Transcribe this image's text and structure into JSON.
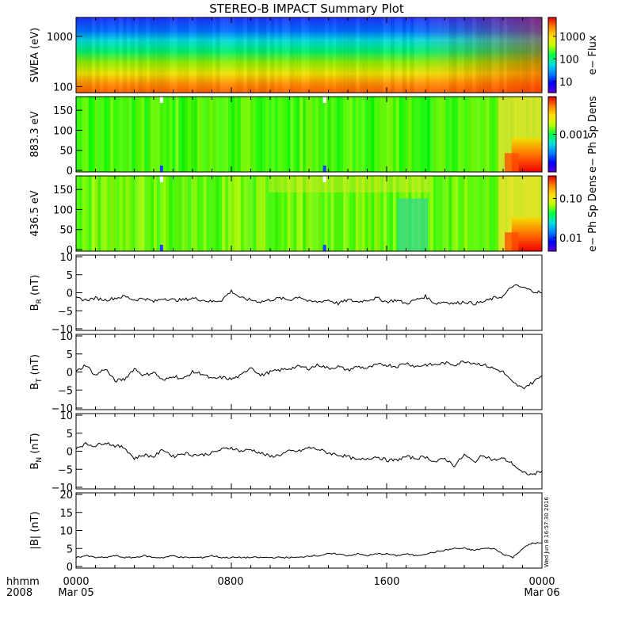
{
  "title": "STEREO-B IMPACT Summary Plot",
  "x_axis": {
    "label_line1": "hhmm",
    "label_line2": "2008",
    "ticks": [
      {
        "hhmm": "0000",
        "date": "Mar 05"
      },
      {
        "hhmm": "0800",
        "date": ""
      },
      {
        "hhmm": "1600",
        "date": ""
      },
      {
        "hhmm": "0000",
        "date": "Mar 06"
      }
    ]
  },
  "timestamp": "Wed Jun 8 16:57:30 2016",
  "colors": {
    "spectrogram_scale": [
      "#5a00d8",
      "#0000ff",
      "#0080ff",
      "#00e0e0",
      "#00ff40",
      "#c0ff00",
      "#ffe000",
      "#ff8000",
      "#e00000"
    ],
    "trace": "#000000"
  },
  "chart_data": [
    {
      "type": "heatmap",
      "ylabel": "SWEA (eV)",
      "yscale": "log",
      "y_ticks": [
        "1000",
        "100"
      ],
      "colorbar_label": "e− Flux",
      "colorbar_ticks": [
        "1000",
        "100",
        "10"
      ]
    },
    {
      "type": "heatmap",
      "ylabel": "883.3 eV",
      "y_ticks": [
        "150",
        "100",
        "50",
        "0"
      ],
      "ylim": [
        0,
        180
      ],
      "colorbar_label": "e− Ph Sp Dens",
      "colorbar_ticks": [
        "0.001"
      ]
    },
    {
      "type": "heatmap",
      "ylabel": "436.5 eV",
      "y_ticks": [
        "150",
        "100",
        "50",
        "0"
      ],
      "ylim": [
        0,
        180
      ],
      "colorbar_label": "e− Ph Sp Dens",
      "colorbar_ticks": [
        "0.10",
        "0.01"
      ]
    },
    {
      "type": "line",
      "ylabel_main": "B",
      "ylabel_sub": "R",
      "ylabel_unit": " (nT)",
      "xlim": [
        0,
        24
      ],
      "ylim": [
        -10,
        10
      ],
      "y_ticks": [
        "10",
        "5",
        "0",
        "−5",
        "−10"
      ],
      "x": [
        0,
        0.5,
        1,
        1.5,
        2,
        2.5,
        3,
        3.5,
        4,
        4.5,
        5,
        5.5,
        6,
        6.5,
        7,
        7.5,
        8,
        8.5,
        9,
        9.5,
        10,
        10.5,
        11,
        11.5,
        12,
        12.5,
        13,
        13.5,
        14,
        14.5,
        15,
        15.5,
        16,
        16.5,
        17,
        17.5,
        18,
        18.5,
        19,
        19.5,
        20,
        20.5,
        21,
        21.5,
        22,
        22.5,
        23,
        23.5,
        24
      ],
      "values": [
        -1.5,
        -2,
        -1.5,
        -2,
        -1.5,
        -1,
        -2,
        -1.5,
        -2.5,
        -1.5,
        -2,
        -2,
        -1.5,
        -2,
        -2.5,
        -2,
        0.5,
        -1.5,
        -2,
        -2.5,
        -2,
        -1.5,
        -2,
        -1,
        -2.5,
        -2.5,
        -2,
        -3,
        -2,
        -2.5,
        -2,
        -1.5,
        -2.5,
        -2,
        -3,
        -2,
        -1,
        -3,
        -2.5,
        -3,
        -2.5,
        -3,
        -2.5,
        -1.5,
        -1,
        2,
        1.5,
        0.5,
        0
      ]
    },
    {
      "type": "line",
      "ylabel_main": "B",
      "ylabel_sub": "T",
      "ylabel_unit": " (nT)",
      "xlim": [
        0,
        24
      ],
      "ylim": [
        -10,
        10
      ],
      "y_ticks": [
        "10",
        "5",
        "0",
        "−5",
        "−10"
      ],
      "x": [
        0,
        0.5,
        1,
        1.5,
        2,
        2.5,
        3,
        3.5,
        4,
        4.5,
        5,
        5.5,
        6,
        6.5,
        7,
        7.5,
        8,
        8.5,
        9,
        9.5,
        10,
        10.5,
        11,
        11.5,
        12,
        12.5,
        13,
        13.5,
        14,
        14.5,
        15,
        15.5,
        16,
        16.5,
        17,
        17.5,
        18,
        18.5,
        19,
        19.5,
        20,
        20.5,
        21,
        21.5,
        22,
        22.5,
        23,
        23.5,
        24
      ],
      "values": [
        0,
        2,
        -1,
        1,
        -2.5,
        -2,
        1,
        -1,
        0,
        -2.5,
        -1,
        -2,
        0,
        -0.5,
        -2,
        -1.5,
        -2,
        -1,
        1.5,
        -1,
        0,
        0.5,
        1,
        1.5,
        1,
        2,
        1,
        1.5,
        0.5,
        1.5,
        1,
        2,
        2,
        1.5,
        2.5,
        1.5,
        2,
        2,
        2.5,
        2,
        3,
        2.5,
        2,
        1,
        0,
        -3,
        -4.5,
        -3,
        -1
      ]
    },
    {
      "type": "line",
      "ylabel_main": "B",
      "ylabel_sub": "N",
      "ylabel_unit": " (nT)",
      "xlim": [
        0,
        24
      ],
      "ylim": [
        -10,
        10
      ],
      "y_ticks": [
        "10",
        "5",
        "0",
        "−5",
        "−10"
      ],
      "x": [
        0,
        0.5,
        1,
        1.5,
        2,
        2.5,
        3,
        3.5,
        4,
        4.5,
        5,
        5.5,
        6,
        6.5,
        7,
        7.5,
        8,
        8.5,
        9,
        9.5,
        10,
        10.5,
        11,
        11.5,
        12,
        12.5,
        13,
        13.5,
        14,
        14.5,
        15,
        15.5,
        16,
        16.5,
        17,
        17.5,
        18,
        18.5,
        19,
        19.5,
        20,
        20.5,
        21,
        21.5,
        22,
        22.5,
        23,
        23.5,
        24
      ],
      "values": [
        1,
        2,
        1.5,
        2.5,
        1.5,
        1,
        -2,
        -1,
        -1.5,
        0.5,
        -1.5,
        -0.5,
        -1,
        -1,
        -0.5,
        0.5,
        1,
        0,
        0.5,
        -0.5,
        -1.5,
        -1,
        0,
        0,
        1,
        0.5,
        -0.5,
        -1,
        -1.5,
        -2.5,
        -2,
        -1.5,
        -2.5,
        -2.5,
        -1.5,
        -2,
        -1.5,
        -3,
        -2,
        -4,
        -1,
        -3,
        -1,
        -2.5,
        -2,
        -3.5,
        -6,
        -6.5,
        -5.5
      ]
    },
    {
      "type": "line",
      "ylabel": "|B| (nT)",
      "xlim": [
        0,
        24
      ],
      "ylim": [
        0,
        20
      ],
      "y_ticks": [
        "20",
        "15",
        "10",
        "5",
        "0"
      ],
      "x": [
        0,
        0.5,
        1,
        1.5,
        2,
        2.5,
        3,
        3.5,
        4,
        4.5,
        5,
        5.5,
        6,
        6.5,
        7,
        7.5,
        8,
        8.5,
        9,
        9.5,
        10,
        10.5,
        11,
        11.5,
        12,
        12.5,
        13,
        13.5,
        14,
        14.5,
        15,
        15.5,
        16,
        16.5,
        17,
        17.5,
        18,
        18.5,
        19,
        19.5,
        20,
        20.5,
        21,
        21.5,
        22,
        22.5,
        23,
        23.5,
        24
      ],
      "values": [
        2.5,
        3,
        2.5,
        2.5,
        3,
        2.5,
        2.5,
        3,
        2.5,
        2.5,
        3,
        2.5,
        2.5,
        2.5,
        3,
        2.5,
        2.5,
        2.5,
        2.5,
        2.5,
        2.5,
        2.5,
        2.5,
        2.5,
        3,
        3,
        3.5,
        3.5,
        3,
        3.5,
        3,
        3.5,
        3.5,
        3,
        3.5,
        3,
        3.5,
        4,
        4.5,
        5,
        5,
        4.5,
        5,
        5,
        3.5,
        2.5,
        5,
        6.5,
        6.5
      ]
    }
  ]
}
